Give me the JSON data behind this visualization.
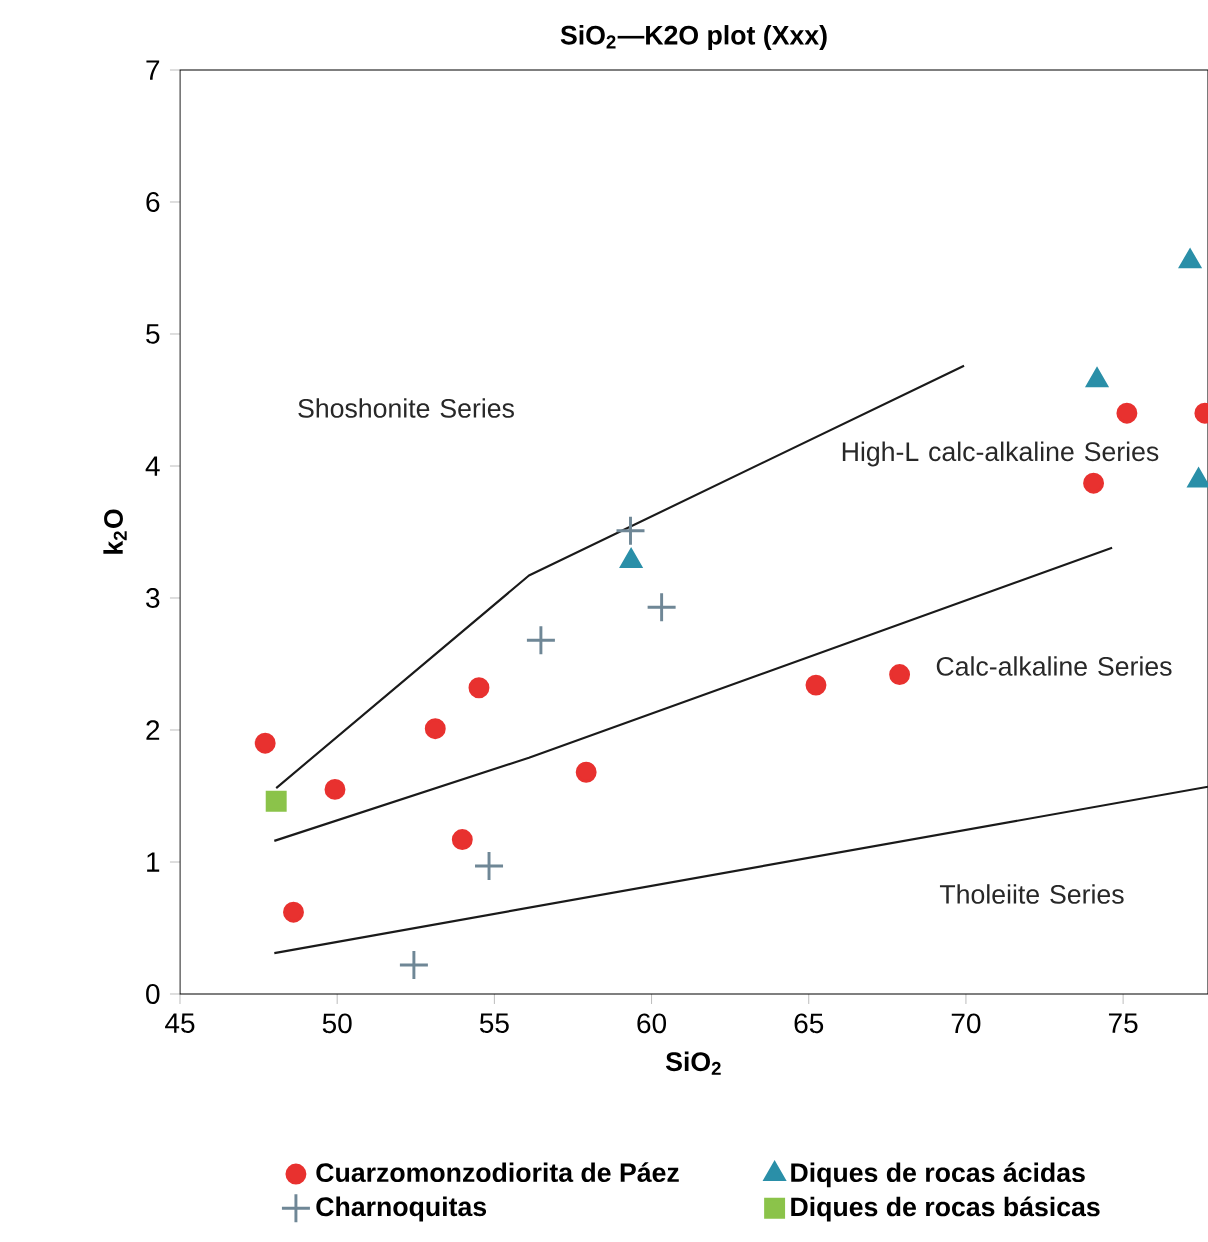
{
  "chart_data": {
    "type": "scatter",
    "title": "SiO$_{2}$—K2O plot (Xxx)",
    "xlabel": "SiO$_{2}$",
    "ylabel": "k$_{2}$O",
    "xlim": [
      45,
      77.7
    ],
    "ylim": [
      0,
      7
    ],
    "xticks": [
      45,
      50,
      55,
      60,
      65,
      70,
      75
    ],
    "yticks": [
      0,
      1,
      2,
      3,
      4,
      5,
      6,
      7
    ],
    "grid": false,
    "legend": "bottom",
    "series": [
      {
        "name": "Cuarzomonzodiorita de Páez",
        "marker": "circle",
        "color": "#e8312f",
        "x": [
          47.71,
          48.61,
          49.93,
          53.12,
          54.51,
          53.98,
          57.92,
          65.23,
          67.89,
          74.06,
          75.12,
          77.6
        ],
        "values": [
          1.9,
          0.62,
          1.55,
          2.01,
          2.32,
          1.17,
          1.68,
          2.34,
          2.42,
          3.87,
          4.4,
          4.4
        ]
      },
      {
        "name": "Diques de rocas ácidas",
        "marker": "triangle",
        "color": "#2a8fa8",
        "x": [
          59.35,
          74.17,
          77.13,
          77.4
        ],
        "values": [
          3.28,
          4.65,
          5.55,
          3.89
        ]
      },
      {
        "name": "Charnoquitas",
        "marker": "cross",
        "color": "#6f8796",
        "x": [
          52.44,
          54.83,
          56.48,
          59.33,
          60.32
        ],
        "values": [
          0.22,
          0.97,
          2.68,
          3.51,
          2.93
        ]
      },
      {
        "name": "Diques de rocas básicas",
        "marker": "square",
        "color": "#8bc34a",
        "x": [
          48.06
        ],
        "values": [
          1.46
        ]
      },
      {
        "type": "line",
        "marker": "none",
        "line_style": "solid",
        "color": "#1a1a1a",
        "x": [
          48.06,
          56.1,
          69.94
        ],
        "values": [
          1.56,
          3.17,
          4.76
        ]
      },
      {
        "type": "line",
        "marker": "none",
        "line_style": "solid",
        "color": "#1a1a1a",
        "x": [
          48.0,
          56.1,
          74.65
        ],
        "values": [
          1.16,
          1.79,
          3.38
        ]
      },
      {
        "type": "line",
        "marker": "none",
        "line_style": "solid",
        "color": "#1a1a1a",
        "x": [
          48.0,
          77.7
        ],
        "values": [
          0.31,
          1.57
        ]
      }
    ],
    "annotations": [
      "Shoshonite Series",
      "High-L calc-alkaline Series",
      "Calc-alkaline Series",
      "Tholeiite Series"
    ]
  }
}
